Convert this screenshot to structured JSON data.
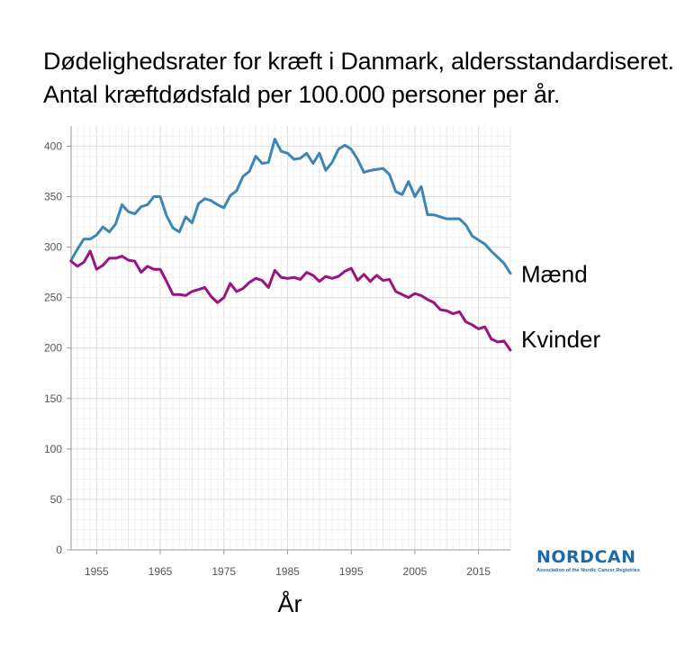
{
  "title": {
    "line1": "Dødelighedsrater for kræft i Danmark, aldersstandardiseret.",
    "line2": "Antal kræftdødsfald per 100.000 personer per år."
  },
  "logo": {
    "name": "NORDCAN",
    "subtitle": "Association of the Nordic Cancer Registries"
  },
  "chart_data": {
    "type": "line",
    "title": "Dødelighedsrater for kræft i Danmark, aldersstandardiseret. Antal kræftdødsfald per 100.000 personer per år.",
    "xlabel": "År",
    "ylabel": "",
    "xlim": [
      1951,
      2020
    ],
    "ylim": [
      0,
      420
    ],
    "xticks": [
      1955,
      1965,
      1975,
      1985,
      1995,
      2005,
      2015
    ],
    "yticks": [
      0,
      50,
      100,
      150,
      200,
      250,
      300,
      350,
      400
    ],
    "grid": true,
    "colors": {
      "Mænd": "#3b86b6",
      "Kvinder": "#9b1281"
    },
    "x": [
      1951,
      1952,
      1953,
      1954,
      1955,
      1956,
      1957,
      1958,
      1959,
      1960,
      1961,
      1962,
      1963,
      1964,
      1965,
      1966,
      1967,
      1968,
      1969,
      1970,
      1971,
      1972,
      1973,
      1974,
      1975,
      1976,
      1977,
      1978,
      1979,
      1980,
      1981,
      1982,
      1983,
      1984,
      1985,
      1986,
      1987,
      1988,
      1989,
      1990,
      1991,
      1992,
      1993,
      1994,
      1995,
      1996,
      1997,
      1998,
      1999,
      2000,
      2001,
      2002,
      2003,
      2004,
      2005,
      2006,
      2007,
      2008,
      2009,
      2010,
      2011,
      2012,
      2013,
      2014,
      2015,
      2016,
      2017,
      2018,
      2019,
      2020
    ],
    "series": [
      {
        "name": "Mænd",
        "values": [
          287,
          298,
          308,
          308,
          312,
          320,
          315,
          323,
          342,
          335,
          333,
          340,
          342,
          350,
          350,
          331,
          319,
          315,
          330,
          324,
          343,
          348,
          346,
          342,
          339,
          351,
          356,
          370,
          375,
          390,
          383,
          384,
          407,
          395,
          393,
          387,
          388,
          393,
          383,
          393,
          376,
          384,
          397,
          401,
          397,
          387,
          374,
          376,
          377,
          378,
          372,
          355,
          352,
          365,
          350,
          360,
          332,
          332,
          330,
          328,
          328,
          328,
          322,
          311,
          307,
          303,
          296,
          290,
          284,
          274
        ]
      },
      {
        "name": "Kvinder",
        "values": [
          286,
          281,
          285,
          296,
          278,
          282,
          289,
          289,
          291,
          287,
          286,
          275,
          281,
          278,
          278,
          266,
          253,
          253,
          252,
          256,
          258,
          260,
          251,
          245,
          250,
          264,
          256,
          259,
          265,
          269,
          267,
          260,
          277,
          270,
          269,
          270,
          268,
          275,
          272,
          266,
          271,
          269,
          271,
          276,
          279,
          267,
          273,
          266,
          272,
          267,
          268,
          256,
          253,
          250,
          254,
          252,
          248,
          245,
          238,
          237,
          234,
          236,
          226,
          223,
          219,
          221,
          209,
          206,
          207,
          198
        ]
      }
    ]
  }
}
